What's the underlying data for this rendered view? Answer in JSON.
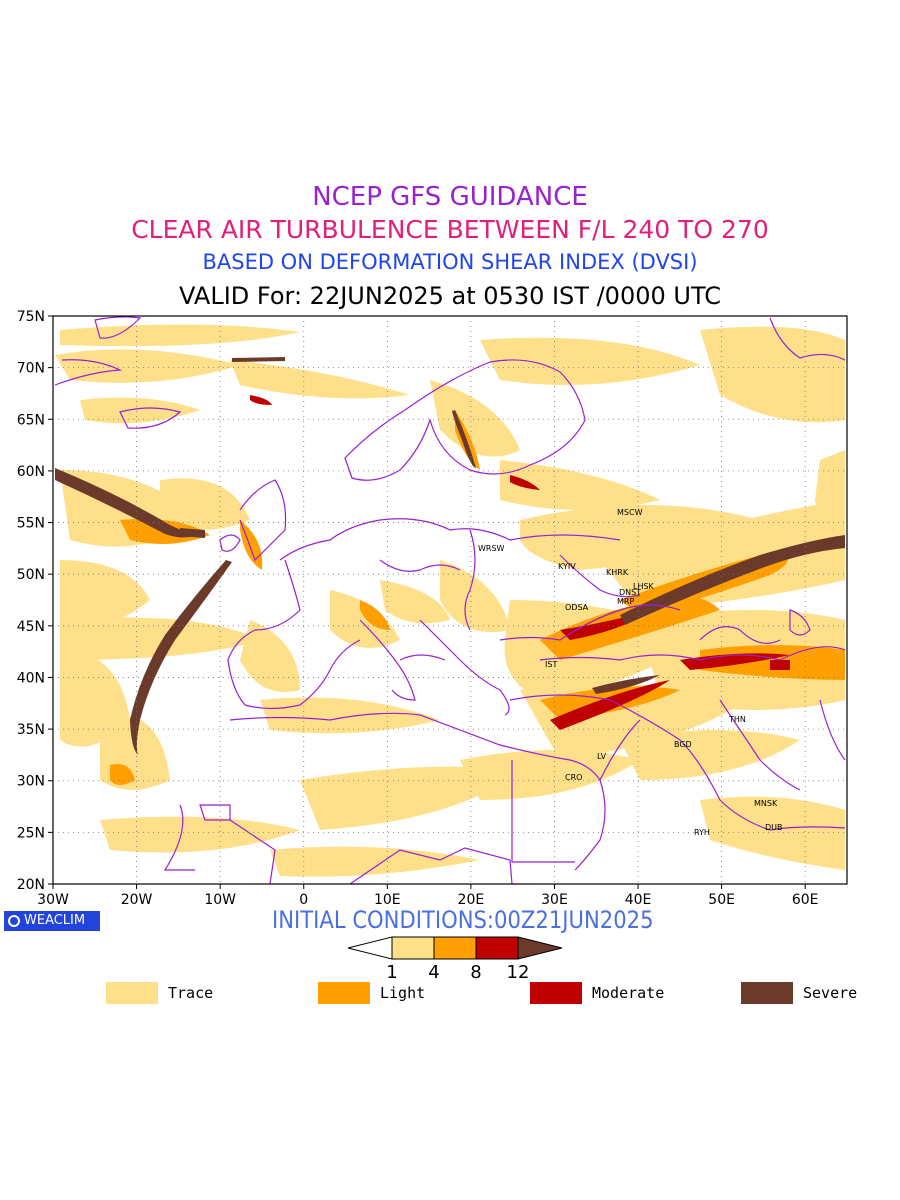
{
  "title": {
    "line1": "NCEP GFS GUIDANCE",
    "line2": "CLEAR AIR TURBULENCE BETWEEN F/L 240 TO 270",
    "line3": "BASED ON DEFORMATION SHEAR INDEX (DVSI)",
    "line4": "VALID For: 22JUN2025 at 0530 IST /0000 UTC"
  },
  "colors": {
    "title1": "#9922cc",
    "title2": "#e0207a",
    "title3": "#2244ee",
    "border": "#9a1fd0",
    "trace": "#ffe08a",
    "light": "#ffa000",
    "moderate": "#c00000",
    "severe": "#6b3a2a"
  },
  "axes": {
    "lat_labels": [
      "75N",
      "70N",
      "65N",
      "60N",
      "55N",
      "50N",
      "45N",
      "40N",
      "35N",
      "30N",
      "25N",
      "20N"
    ],
    "lon_labels": [
      "30W",
      "20W",
      "10W",
      "0",
      "10E",
      "20E",
      "30E",
      "40E",
      "50E",
      "60E"
    ]
  },
  "stations": [
    "MSCW",
    "WRSW",
    "KYIV",
    "KHRK",
    "LHSK",
    "DNST",
    "MRP",
    "ODSA",
    "IST",
    "THN",
    "BGD",
    "LV",
    "CRO",
    "MNSK",
    "RYH",
    "DUB"
  ],
  "badge": "WEACLIM",
  "initial_conditions": "INITIAL CONDITIONS:00Z21JUN2025",
  "scale": {
    "ticks": [
      "1",
      "4",
      "8",
      "12"
    ]
  },
  "legend": [
    {
      "label": "Trace",
      "color": "#ffe08a"
    },
    {
      "label": "Light",
      "color": "#ffa000"
    },
    {
      "label": "Moderate",
      "color": "#c00000"
    },
    {
      "label": "Severe",
      "color": "#6b3a2a"
    }
  ]
}
